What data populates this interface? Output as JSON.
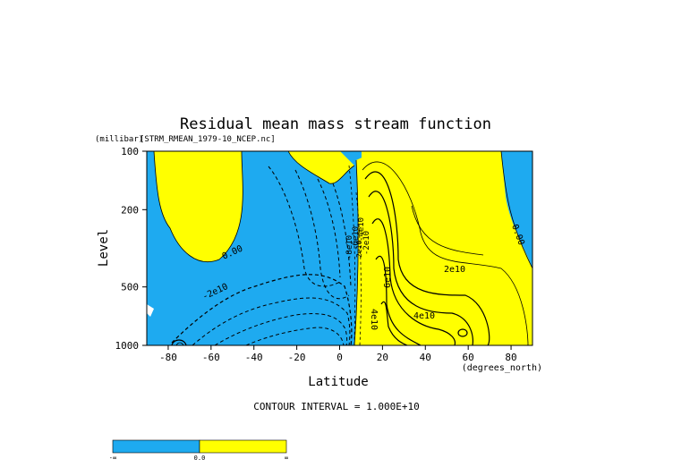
{
  "chart_data": {
    "type": "heatmap",
    "title": "Residual mean mass stream function",
    "subtitle": "[STRM_RMEAN_1979-10_NCEP.nc]",
    "xlabel": "Latitude",
    "ylabel": "Level",
    "x_unit": "(degrees_north)",
    "y_unit": "(millibar)",
    "xlim": [
      -90,
      90
    ],
    "ylim": [
      1000,
      100
    ],
    "y_scale": "log",
    "x_ticks": [
      -80,
      -60,
      -40,
      -20,
      0,
      20,
      40,
      60,
      80
    ],
    "y_ticks": [
      100,
      200,
      500,
      1000
    ],
    "contour_interval_text": "CONTOUR INTERVAL = 1.000E+10",
    "contour_labels": [
      "0.00",
      "0.00",
      "-2e10",
      "-8e10",
      "-6e10",
      "-4e10",
      "-2e10",
      "2e10",
      "4e10",
      "6e10",
      "4e10",
      "2e10"
    ],
    "colors": {
      "negative": "#1eaaf0",
      "positive": "#ffff00"
    },
    "colorbar": {
      "labels": [
        "-∞",
        "0.0",
        "∞"
      ]
    }
  }
}
